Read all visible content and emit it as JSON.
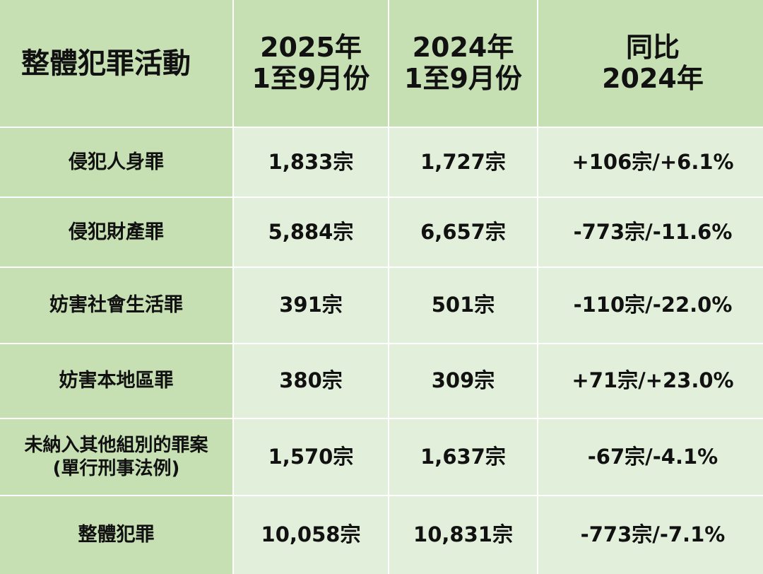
{
  "header": {
    "title": "整體犯罪活動",
    "col_2025": "2025年\n1至9月份",
    "col_2024": "2024年\n1至9月份",
    "col_compare": "同比\n2024年"
  },
  "rows": [
    {
      "category": "侵犯人身罪",
      "y2025": "1,833宗",
      "y2024": "1,727宗",
      "change": "+106宗/+6.1%"
    },
    {
      "category": "侵犯財產罪",
      "y2025": "5,884宗",
      "y2024": "6,657宗",
      "change": "-773宗/-11.6%"
    },
    {
      "category": "妨害社會生活罪",
      "y2025": "391宗",
      "y2024": "501宗",
      "change": "-110宗/-22.0%"
    },
    {
      "category": "妨害本地區罪",
      "y2025": "380宗",
      "y2024": "309宗",
      "change": "+71宗/+23.0%"
    },
    {
      "category": "未納入其他組別的罪案\n(單行刑事法例)",
      "y2025": "1,570宗",
      "y2024": "1,637宗",
      "change": "-67宗/-4.1%"
    },
    {
      "category": "整體犯罪",
      "y2025": "10,058宗",
      "y2024": "10,831宗",
      "change": "-773宗/-7.1%"
    }
  ],
  "colors": {
    "header_bg": "#c6e0b4",
    "cell_bg": "#e2efda",
    "grid_line": "#ffffff"
  }
}
